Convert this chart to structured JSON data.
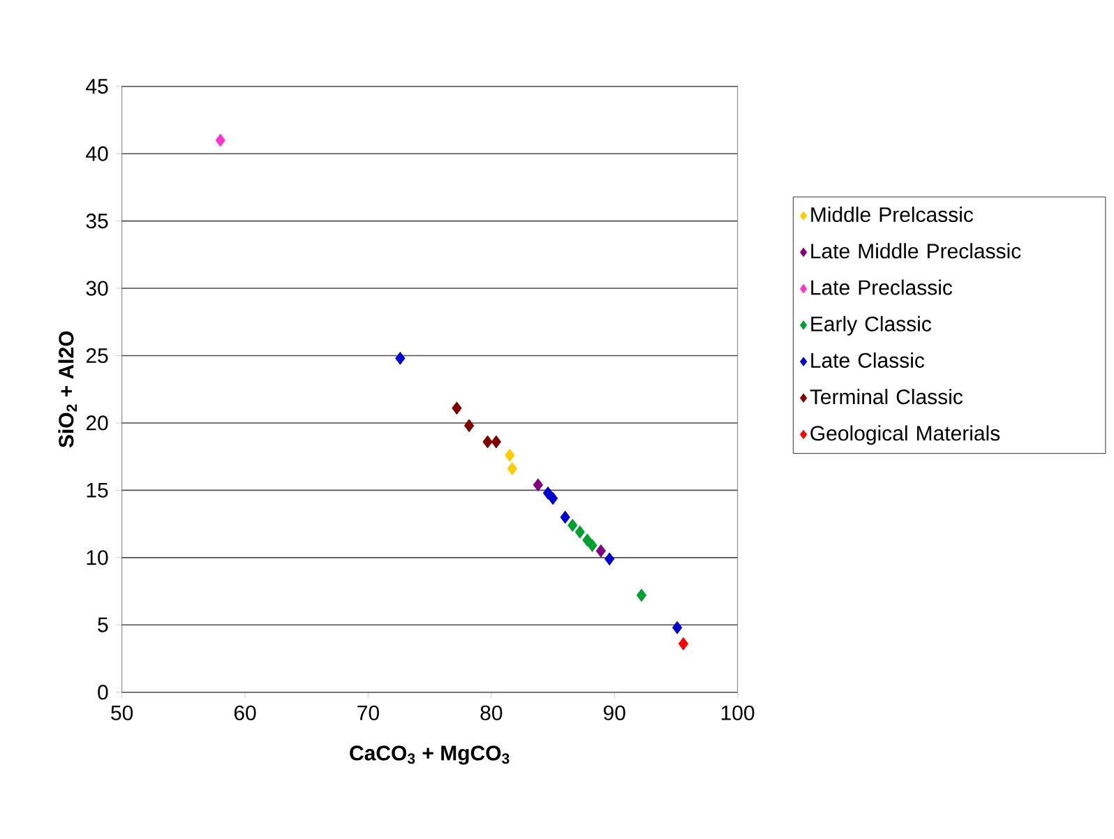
{
  "chart_data": {
    "type": "scatter",
    "xlabel": "CaCO$_{3}$ + MgCO$_{3}$",
    "ylabel": "SiO$_{2}$ + Al2O",
    "xlim": [
      50,
      100
    ],
    "xticks": [
      50,
      60,
      70,
      80,
      90,
      100
    ],
    "ylim": [
      0,
      45
    ],
    "yticks": [
      0,
      5,
      10,
      15,
      20,
      25,
      30,
      35,
      40,
      45
    ],
    "grid": "y",
    "legend": "right",
    "marker": "diamond",
    "series": [
      {
        "name": "Middle Prelcassic",
        "color": "#ffcc00",
        "x": [
          81.5,
          81.7
        ],
        "values": [
          17.6,
          16.6
        ]
      },
      {
        "name": "Late Middle Preclassic",
        "color": "#800080",
        "x": [
          83.8,
          88.9
        ],
        "values": [
          15.4,
          10.5
        ]
      },
      {
        "name": "Late Preclassic",
        "color": "#ff33cc",
        "x": [
          58.0
        ],
        "values": [
          41.0
        ]
      },
      {
        "name": "Early Classic",
        "color": "#00a030",
        "x": [
          86.6,
          87.2,
          87.8,
          88.2,
          92.2
        ],
        "values": [
          12.4,
          11.9,
          11.3,
          10.9,
          7.2
        ]
      },
      {
        "name": "Late Classic",
        "color": "#0000cc",
        "x": [
          72.6,
          84.6,
          85.0,
          86.0,
          89.6,
          95.1
        ],
        "values": [
          24.8,
          14.8,
          14.4,
          13.0,
          9.9,
          4.8
        ]
      },
      {
        "name": "Terminal Classic",
        "color": "#800000",
        "x": [
          77.2,
          78.2,
          79.7,
          80.4
        ],
        "values": [
          21.1,
          19.8,
          18.6,
          18.6
        ]
      },
      {
        "name": "Geological Materials",
        "color": "#ff0000",
        "x": [
          95.6
        ],
        "values": [
          3.6
        ]
      }
    ]
  }
}
